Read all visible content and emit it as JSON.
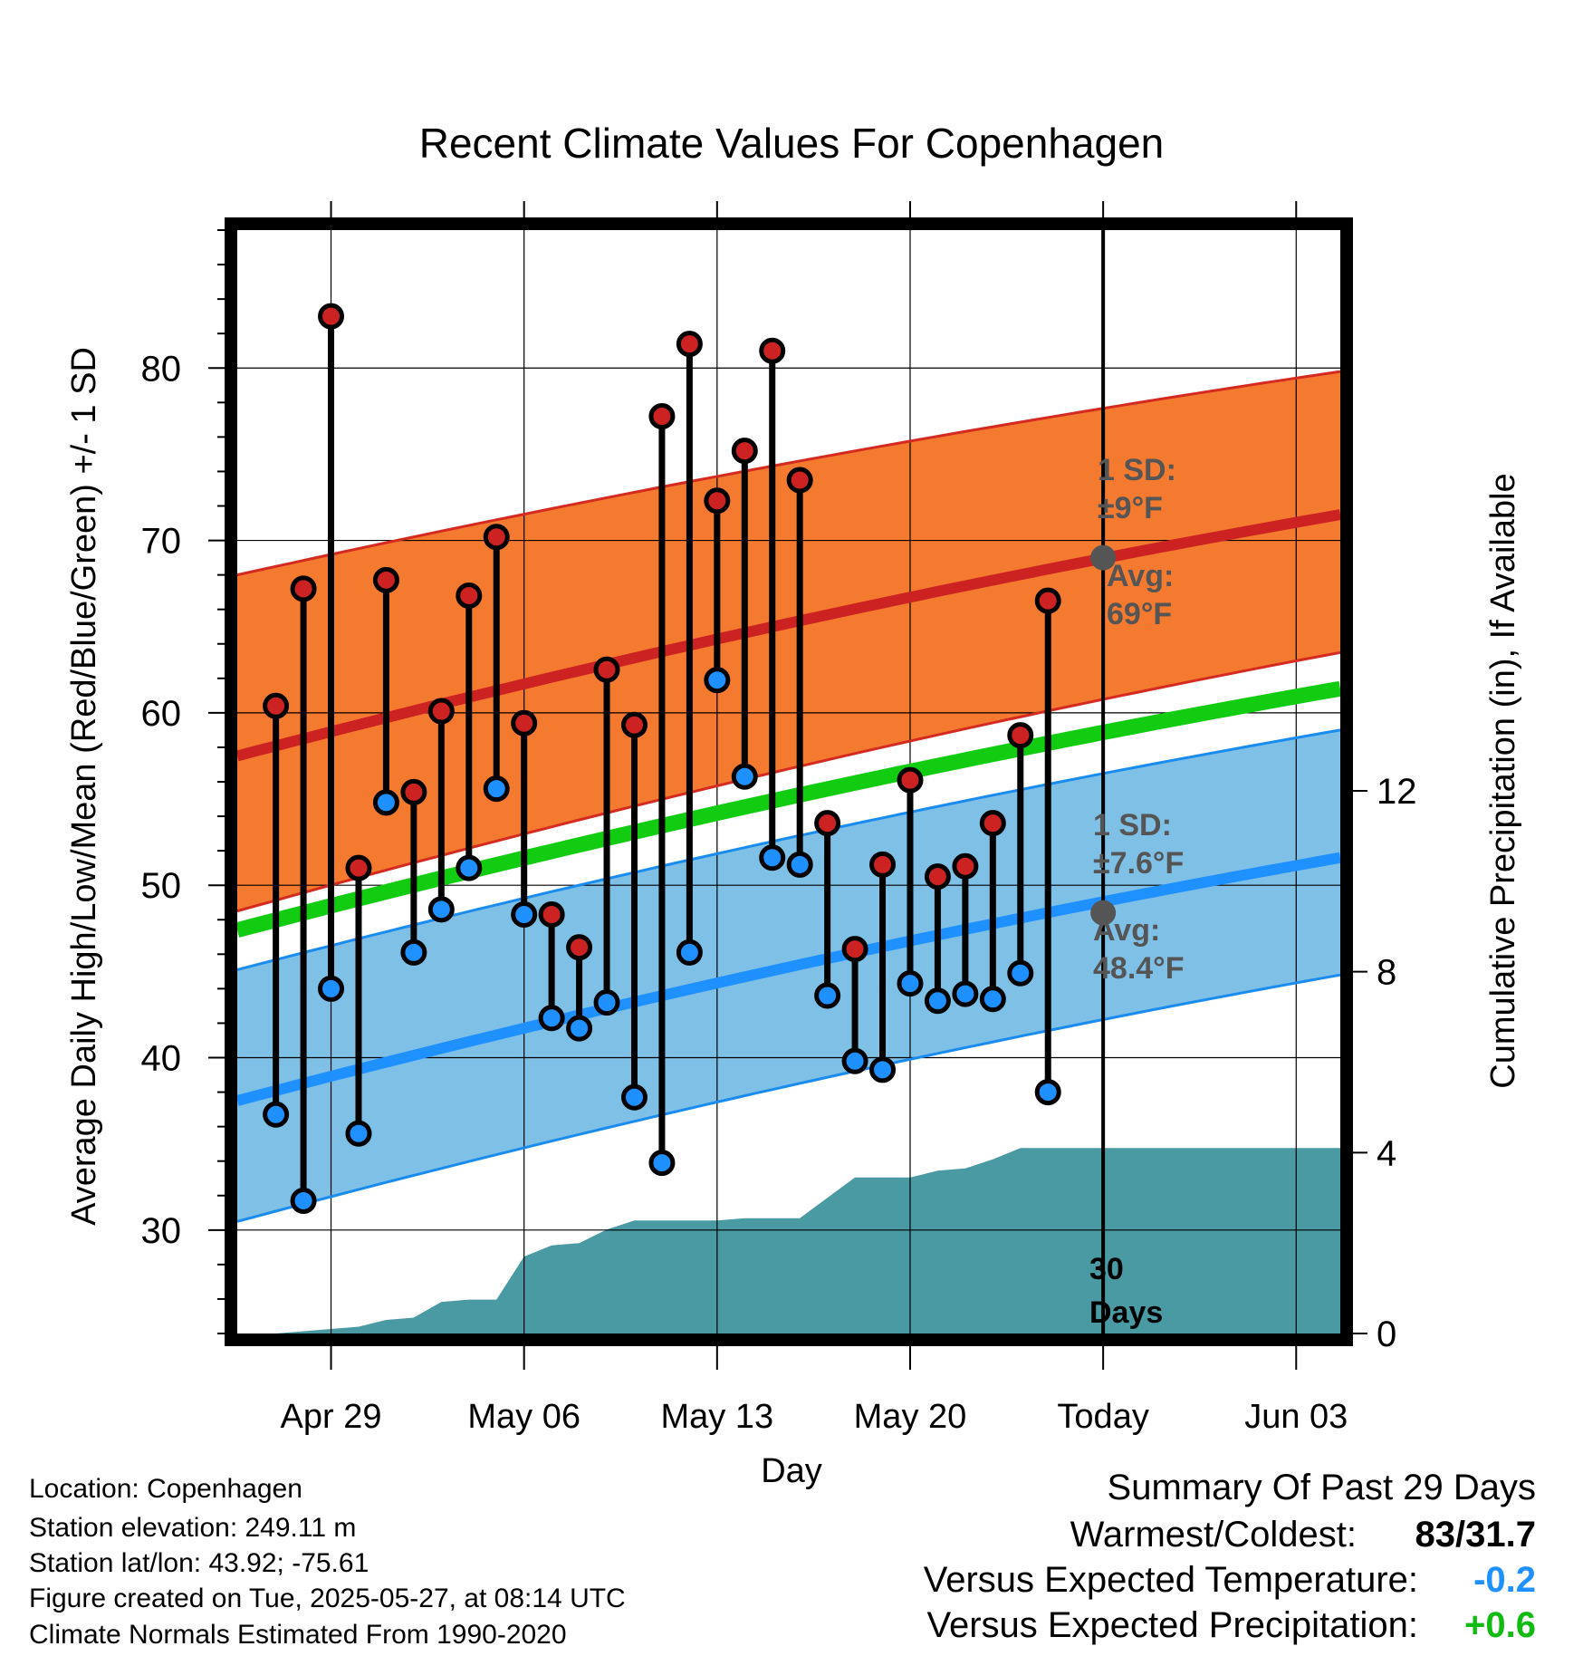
{
  "chart_data": {
    "type": "line",
    "title": "Recent Climate Values For Copenhagen",
    "xlabel": "Day",
    "ylabel_left": "Average Daily High/Low/Mean (Red/Blue/Green) +/- 1 SD",
    "ylabel_right": "Cumulative Precipitation (in), If Available",
    "xlim": [
      -0.4,
      39.6
    ],
    "ylim": [
      24,
      88
    ],
    "y2lim": [
      0,
      24.4
    ],
    "x_ticks": [
      {
        "day": 3,
        "label": "Apr 29"
      },
      {
        "day": 10,
        "label": "May 06"
      },
      {
        "day": 17,
        "label": "May 13"
      },
      {
        "day": 24,
        "label": "May 20"
      },
      {
        "day": 31,
        "label": "Today"
      },
      {
        "day": 38,
        "label": "Jun 03"
      }
    ],
    "y_ticks": [
      30,
      40,
      50,
      60,
      70,
      80
    ],
    "y2_ticks": [
      0,
      4,
      8,
      12
    ],
    "grid": true,
    "normals": {
      "high_avg": {
        "start": 57.5,
        "end": 71.5
      },
      "high_sd_upper": {
        "start": 68,
        "end": 79.8
      },
      "high_sd_lower": {
        "start": 48.5,
        "end": 63.5
      },
      "mean_avg": {
        "start": 47.4,
        "end": 61.4
      },
      "low_avg": {
        "start": 37.5,
        "end": 51.6
      },
      "low_sd_upper": {
        "start": 45.1,
        "end": 59
      },
      "low_sd_lower": {
        "start": 30.5,
        "end": 44.8
      }
    },
    "daily_high": [
      60.4,
      67.2,
      83,
      51,
      67.7,
      55.4,
      60.1,
      66.8,
      70.2,
      59.4,
      48.3,
      46.4,
      62.5,
      59.3,
      77.2,
      81.4,
      72.3,
      75.2,
      81,
      73.5,
      53.6,
      46.3,
      51.2,
      56.1,
      50.5,
      51.1,
      53.6,
      58.7,
      66.5
    ],
    "daily_low": [
      36.7,
      31.7,
      44,
      35.6,
      54.8,
      46.1,
      48.6,
      51,
      55.6,
      48.3,
      42.3,
      41.7,
      43.2,
      37.7,
      33.9,
      46.1,
      61.9,
      56.3,
      51.6,
      51.2,
      43.6,
      39.8,
      39.3,
      44.3,
      43.3,
      43.7,
      43.4,
      44.9,
      38
    ],
    "precip_cumulative": [
      [
        0,
        0
      ],
      [
        1,
        0
      ],
      [
        2,
        0.05
      ],
      [
        3,
        0.1
      ],
      [
        4,
        0.15
      ],
      [
        5,
        0.3
      ],
      [
        6,
        0.35
      ],
      [
        7,
        0.7
      ],
      [
        8,
        0.75
      ],
      [
        9,
        0.75
      ],
      [
        10,
        1.7
      ],
      [
        11,
        1.95
      ],
      [
        12,
        2.0
      ],
      [
        13,
        2.3
      ],
      [
        14,
        2.5
      ],
      [
        15,
        2.5
      ],
      [
        16,
        2.5
      ],
      [
        17,
        2.5
      ],
      [
        18,
        2.55
      ],
      [
        19,
        2.55
      ],
      [
        20,
        2.55
      ],
      [
        21,
        3.0
      ],
      [
        22,
        3.45
      ],
      [
        23,
        3.45
      ],
      [
        24,
        3.45
      ],
      [
        25,
        3.6
      ],
      [
        26,
        3.65
      ],
      [
        27,
        3.85
      ],
      [
        28,
        4.1
      ],
      [
        29,
        4.1
      ],
      [
        30,
        4.1
      ],
      [
        39.6,
        4.1
      ]
    ],
    "today_day": 31,
    "annotations": {
      "high_sd": "1 SD:",
      "high_sd_value": "±9°F",
      "high_avg": "Avg:",
      "high_avg_value": "69°F",
      "low_sd": "1 SD:",
      "low_sd_value": "±7.6°F",
      "low_avg": "Avg:",
      "low_avg_value": "48.4°F",
      "window_line1": "30",
      "window_line2": "Days"
    },
    "markers": {
      "high_today": 69,
      "low_today": 48.4
    },
    "colors": {
      "high_band": "#f47a30",
      "high_avg_line": "#cc2222",
      "high_band_edge": "#d42a20",
      "low_band": "#7fc0e6",
      "low_avg_line": "#1e90ff",
      "low_band_edge": "#1a8cf0",
      "mean_line": "#11cc11",
      "precip": "#4a9aa4",
      "high_marker": "#cc2222",
      "low_marker": "#1e90ff",
      "annotation_text": "#555555"
    }
  },
  "info": {
    "location": "Location: Copenhagen",
    "elevation": "Station elevation: 249.11 m",
    "latlon": "Station lat/lon: 43.92; -75.61",
    "created": "Figure created on Tue, 2025-05-27, at 08:14 UTC",
    "normals": "Climate Normals Estimated From 1990-2020"
  },
  "summary": {
    "title": "Summary Of Past 29 Days",
    "warm_cold_label": "Warmest/Coldest:",
    "warm_cold_value": "83/31.7",
    "temp_label": "Versus Expected Temperature:",
    "temp_value": "-0.2",
    "temp_color": "#1e90ff",
    "precip_label": "Versus Expected Precipitation:",
    "precip_value": "+0.6",
    "precip_color": "#11bb11"
  }
}
